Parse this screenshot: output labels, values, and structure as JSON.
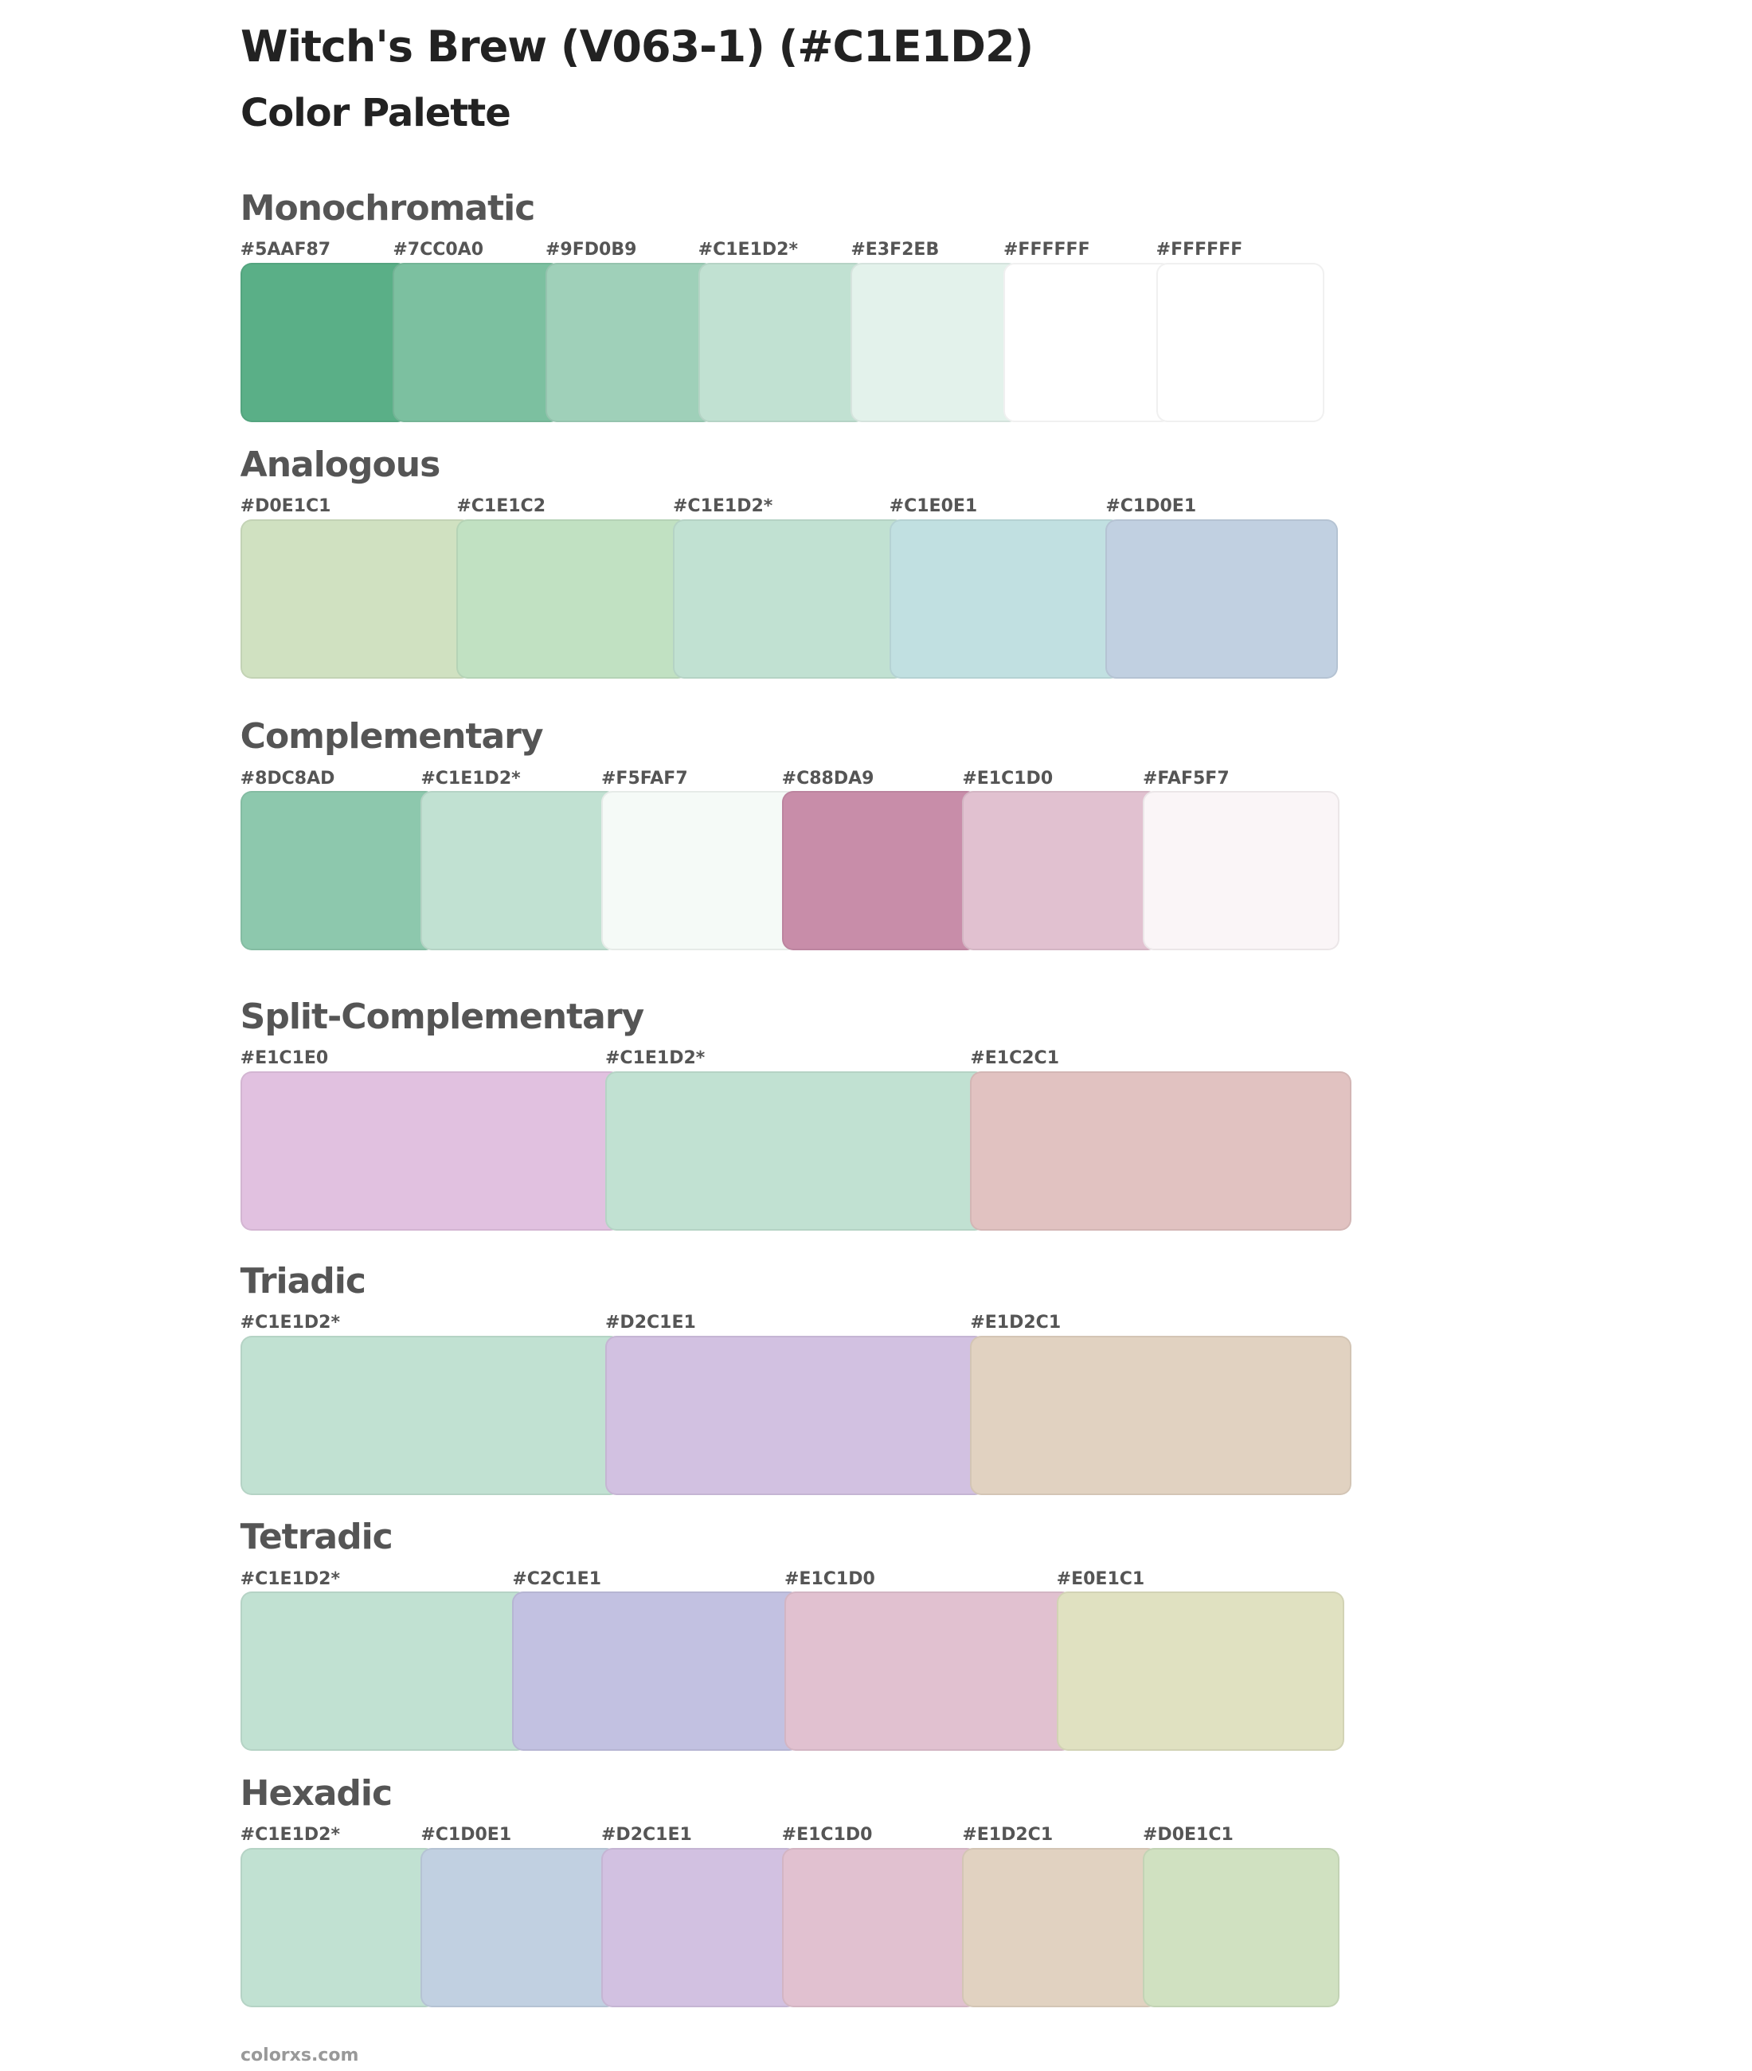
{
  "header": {
    "title": "Witch's Brew (V063-1) (#C1E1D2)",
    "subtitle": "Color Palette"
  },
  "sections": [
    {
      "name": "Monochromatic",
      "swatches": [
        {
          "label": "#5AAF87",
          "color": "#5AAF87"
        },
        {
          "label": "#7CC0A0",
          "color": "#7CC0A0"
        },
        {
          "label": "#9FD0B9",
          "color": "#9FD0B9"
        },
        {
          "label": "#C1E1D2*",
          "color": "#C1E1D2"
        },
        {
          "label": "#E3F2EB",
          "color": "#E3F2EB"
        },
        {
          "label": "#FFFFFF",
          "color": "#FFFFFF"
        },
        {
          "label": "#FFFFFF",
          "color": "#FFFFFF"
        }
      ]
    },
    {
      "name": "Analogous",
      "swatches": [
        {
          "label": "#D0E1C1",
          "color": "#D0E1C1"
        },
        {
          "label": "#C1E1C2",
          "color": "#C1E1C2"
        },
        {
          "label": "#C1E1D2*",
          "color": "#C1E1D2"
        },
        {
          "label": "#C1E0E1",
          "color": "#C1E0E1"
        },
        {
          "label": "#C1D0E1",
          "color": "#C1D0E1"
        }
      ]
    },
    {
      "name": "Complementary",
      "swatches": [
        {
          "label": "#8DC8AD",
          "color": "#8DC8AD"
        },
        {
          "label": "#C1E1D2*",
          "color": "#C1E1D2"
        },
        {
          "label": "#F5FAF7",
          "color": "#F5FAF7"
        },
        {
          "label": "#C88DA9",
          "color": "#C88DA9"
        },
        {
          "label": "#E1C1D0",
          "color": "#E1C1D0"
        },
        {
          "label": "#FAF5F7",
          "color": "#FAF5F7"
        }
      ]
    },
    {
      "name": "Split-Complementary",
      "swatches": [
        {
          "label": "#E1C1E0",
          "color": "#E1C1E0"
        },
        {
          "label": "#C1E1D2*",
          "color": "#C1E1D2"
        },
        {
          "label": "#E1C2C1",
          "color": "#E1C2C1"
        }
      ]
    },
    {
      "name": "Triadic",
      "swatches": [
        {
          "label": "#C1E1D2*",
          "color": "#C1E1D2"
        },
        {
          "label": "#D2C1E1",
          "color": "#D2C1E1"
        },
        {
          "label": "#E1D2C1",
          "color": "#E1D2C1"
        }
      ]
    },
    {
      "name": "Tetradic",
      "swatches": [
        {
          "label": "#C1E1D2*",
          "color": "#C1E1D2"
        },
        {
          "label": "#C2C1E1",
          "color": "#C2C1E1"
        },
        {
          "label": "#E1C1D0",
          "color": "#E1C1D0"
        },
        {
          "label": "#E0E1C1",
          "color": "#E0E1C1"
        }
      ]
    },
    {
      "name": "Hexadic",
      "swatches": [
        {
          "label": "#C1E1D2*",
          "color": "#C1E1D2"
        },
        {
          "label": "#C1D0E1",
          "color": "#C1D0E1"
        },
        {
          "label": "#D2C1E1",
          "color": "#D2C1E1"
        },
        {
          "label": "#E1C1D0",
          "color": "#E1C1D0"
        },
        {
          "label": "#E1D2C1",
          "color": "#E1D2C1"
        },
        {
          "label": "#D0E1C1",
          "color": "#D0E1C1"
        }
      ]
    }
  ],
  "footer": {
    "site": "colorxs.com"
  }
}
